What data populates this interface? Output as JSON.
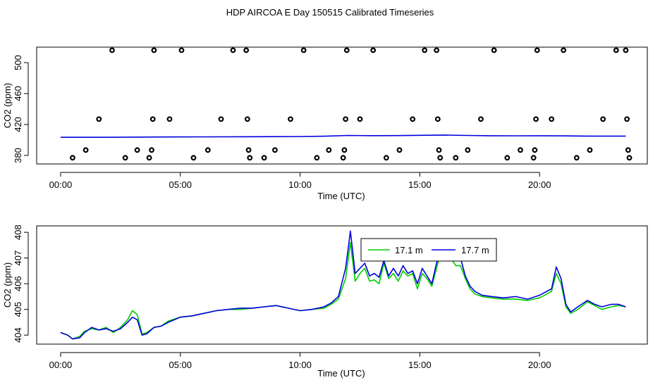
{
  "page": {
    "title": "HDP AIRCOA E  Day 150515  Calibrated Timeseries"
  },
  "chart_data": [
    {
      "type": "scatter",
      "xlabel": "Time (UTC)",
      "ylabel": "CO2 (ppm)",
      "xlim": [
        -1.0,
        24.5
      ],
      "ylim": [
        369.0,
        520.0
      ],
      "x_tick_values": [
        0,
        5,
        10,
        15,
        20
      ],
      "x_tick_labels": [
        "00:00",
        "05:00",
        "10:00",
        "15:00",
        "20:00"
      ],
      "y_tick_values": [
        380,
        420,
        460,
        500
      ],
      "y_tick_labels": [
        "380",
        "420",
        "460",
        "500"
      ],
      "grid": false,
      "series": [
        {
          "color": "#0000dd",
          "x": [
            0,
            2,
            4,
            6,
            8,
            10,
            11,
            12,
            13,
            14,
            15,
            16,
            17,
            18,
            19,
            20,
            21,
            22,
            23,
            23.6
          ],
          "y": [
            403.5,
            403.5,
            403.8,
            404.0,
            404.2,
            404.5,
            404.8,
            405.8,
            405.6,
            405.7,
            406.0,
            406.4,
            405.8,
            405.5,
            405.4,
            405.5,
            405.3,
            405.0,
            405.0,
            405.0
          ]
        },
        {
          "color": "#000000",
          "x": [
            0.5,
            1.05,
            1.6,
            2.15,
            2.7,
            3.2,
            3.7,
            3.8,
            3.85,
            3.9,
            4.55,
            5.05,
            5.55,
            6.15,
            6.7,
            7.2,
            7.75,
            7.8,
            7.85,
            7.9,
            8.5,
            8.95,
            9.6,
            10.15,
            10.7,
            11.2,
            11.8,
            11.85,
            11.9,
            11.95,
            12.5,
            13.05,
            13.6,
            14.15,
            14.7,
            15.2,
            15.7,
            15.75,
            15.8,
            15.85,
            16.5,
            17.0,
            17.55,
            18.1,
            18.65,
            19.2,
            19.75,
            19.8,
            19.85,
            19.9,
            20.5,
            21.0,
            21.55,
            22.1,
            22.65,
            23.2,
            23.6,
            23.65,
            23.7,
            23.75
          ],
          "y": [
            377,
            387,
            427,
            516,
            377,
            387,
            377,
            387,
            427,
            516,
            427,
            516,
            377,
            387,
            427,
            516,
            516,
            427,
            387,
            377,
            377,
            387,
            427,
            516,
            377,
            387,
            377,
            387,
            427,
            516,
            427,
            516,
            377,
            387,
            427,
            516,
            516,
            427,
            387,
            377,
            377,
            387,
            427,
            516,
            377,
            387,
            377,
            387,
            427,
            516,
            427,
            516,
            377,
            387,
            427,
            516,
            516,
            427,
            387,
            377
          ]
        }
      ]
    },
    {
      "type": "line",
      "xlabel": "Time (UTC)",
      "ylabel": "CO2 (ppm)",
      "xlim": [
        -1.0,
        24.5
      ],
      "ylim": [
        403.65,
        408.25
      ],
      "x_tick_values": [
        0,
        5,
        10,
        15,
        20
      ],
      "x_tick_labels": [
        "00:00",
        "05:00",
        "10:00",
        "15:00",
        "20:00"
      ],
      "y_tick_values": [
        404,
        405,
        406,
        407,
        408
      ],
      "y_tick_labels": [
        "404",
        "405",
        "406",
        "407",
        "408"
      ],
      "grid": false,
      "legend": "top-center",
      "series": [
        {
          "name": "17.1 m",
          "color": "#00cc00",
          "x": [
            0.0,
            0.3,
            0.5,
            0.8,
            1.0,
            1.3,
            1.6,
            1.9,
            2.2,
            2.5,
            2.8,
            3.0,
            3.2,
            3.4,
            3.6,
            3.9,
            4.2,
            4.5,
            5.0,
            5.5,
            6.0,
            6.5,
            7.0,
            7.5,
            8.0,
            8.5,
            9.0,
            9.5,
            10.0,
            10.5,
            11.0,
            11.3,
            11.6,
            11.9,
            12.0,
            12.1,
            12.3,
            12.5,
            12.7,
            12.9,
            13.1,
            13.3,
            13.5,
            13.7,
            13.9,
            14.1,
            14.3,
            14.5,
            14.7,
            14.9,
            15.1,
            15.3,
            15.5,
            15.7,
            15.9,
            16.1,
            16.3,
            16.5,
            16.7,
            16.9,
            17.1,
            17.3,
            17.6,
            18.0,
            18.5,
            19.0,
            19.5,
            20.0,
            20.3,
            20.5,
            20.7,
            20.9,
            21.1,
            21.3,
            21.6,
            22.0,
            22.3,
            22.6,
            23.0,
            23.3,
            23.6
          ],
          "y": [
            404.1,
            404.0,
            403.85,
            403.95,
            404.15,
            404.25,
            404.2,
            404.3,
            404.1,
            404.3,
            404.6,
            404.95,
            404.8,
            404.05,
            404.1,
            404.3,
            404.35,
            404.55,
            404.7,
            404.75,
            404.85,
            404.95,
            405.0,
            405.0,
            405.05,
            405.1,
            405.15,
            405.05,
            404.95,
            405.0,
            405.05,
            405.2,
            405.4,
            406.2,
            406.9,
            407.6,
            406.1,
            406.4,
            406.6,
            406.1,
            406.15,
            406.0,
            406.8,
            406.2,
            406.4,
            406.1,
            406.5,
            406.3,
            406.4,
            405.8,
            406.4,
            406.2,
            405.9,
            406.6,
            407.3,
            407.4,
            407.0,
            406.7,
            406.7,
            406.2,
            405.8,
            405.6,
            405.5,
            405.45,
            405.4,
            405.4,
            405.35,
            405.45,
            405.6,
            405.7,
            406.4,
            406.0,
            405.1,
            404.85,
            405.0,
            405.3,
            405.15,
            405.0,
            405.1,
            405.15,
            405.1
          ]
        },
        {
          "name": "17.7 m",
          "color": "#0000dd",
          "x": [
            0.0,
            0.3,
            0.5,
            0.8,
            1.0,
            1.3,
            1.6,
            1.9,
            2.2,
            2.5,
            2.8,
            3.0,
            3.2,
            3.4,
            3.6,
            3.9,
            4.2,
            4.5,
            5.0,
            5.5,
            6.0,
            6.5,
            7.0,
            7.5,
            8.0,
            8.5,
            9.0,
            9.5,
            10.0,
            10.5,
            11.0,
            11.3,
            11.6,
            11.9,
            12.0,
            12.1,
            12.3,
            12.5,
            12.7,
            12.9,
            13.1,
            13.3,
            13.5,
            13.7,
            13.9,
            14.1,
            14.3,
            14.5,
            14.7,
            14.9,
            15.1,
            15.3,
            15.5,
            15.7,
            15.9,
            16.1,
            16.3,
            16.5,
            16.7,
            16.9,
            17.1,
            17.3,
            17.6,
            18.0,
            18.5,
            19.0,
            19.5,
            20.0,
            20.3,
            20.5,
            20.7,
            20.9,
            21.1,
            21.3,
            21.6,
            22.0,
            22.3,
            22.6,
            23.0,
            23.3,
            23.6
          ],
          "y": [
            404.1,
            404.0,
            403.85,
            403.9,
            404.1,
            404.3,
            404.2,
            404.25,
            404.15,
            404.25,
            404.5,
            404.7,
            404.6,
            404.0,
            404.05,
            404.3,
            404.35,
            404.5,
            404.7,
            404.75,
            404.85,
            404.95,
            405.0,
            405.05,
            405.05,
            405.1,
            405.15,
            405.05,
            404.95,
            405.0,
            405.1,
            405.25,
            405.5,
            406.6,
            407.3,
            408.05,
            406.4,
            406.6,
            406.8,
            406.3,
            406.4,
            406.25,
            406.9,
            406.3,
            406.6,
            406.3,
            406.7,
            406.4,
            406.5,
            406.0,
            406.6,
            406.3,
            406.0,
            406.8,
            407.35,
            407.55,
            407.0,
            406.9,
            407.0,
            406.3,
            405.9,
            405.7,
            405.55,
            405.5,
            405.45,
            405.5,
            405.4,
            405.55,
            405.7,
            405.8,
            406.65,
            406.2,
            405.2,
            404.9,
            405.1,
            405.35,
            405.2,
            405.1,
            405.2,
            405.2,
            405.1
          ]
        }
      ]
    }
  ]
}
